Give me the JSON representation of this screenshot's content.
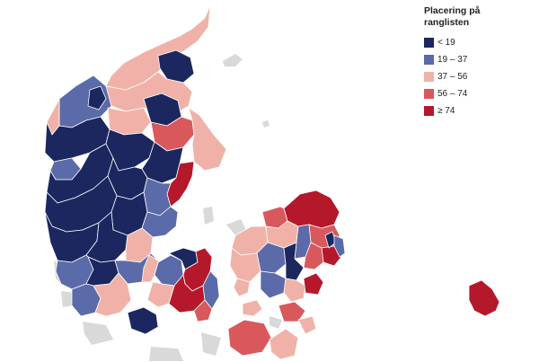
{
  "legend": {
    "title": "Placering på\nranglisten",
    "items": [
      {
        "label": "< 19",
        "color": "#1b275e",
        "icon": "legend-swatch-navy"
      },
      {
        "label": "19 – 37",
        "color": "#5b6aa8",
        "icon": "legend-swatch-blue"
      },
      {
        "label": "37 – 56",
        "color": "#f0b2a8",
        "icon": "legend-swatch-pink"
      },
      {
        "label": "56 – 74",
        "color": "#d9585c",
        "icon": "legend-swatch-salmon"
      },
      {
        "label": "≥ 74",
        "color": "#b5172b",
        "icon": "legend-swatch-red"
      }
    ]
  },
  "colors": {
    "background": "#ffffff",
    "neighbour_land": "#d9d9d9",
    "border": "#ffffff"
  }
}
